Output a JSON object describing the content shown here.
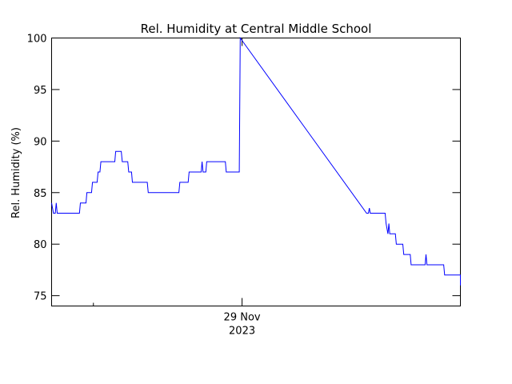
{
  "chart_data": {
    "type": "line",
    "title": "Rel. Humidity at Central Middle School",
    "ylabel": "Rel. Humidity (%)",
    "xlabel": "",
    "x_tick_labels": [
      {
        "x": 20.5,
        "line1": "29 Nov",
        "line2": "2023"
      }
    ],
    "x_minor_ticks": [
      4.5
    ],
    "xlim": [
      0,
      44
    ],
    "ylim": [
      74,
      100
    ],
    "y_ticks": [
      75,
      80,
      85,
      90,
      95,
      100
    ],
    "grid": false,
    "series": [
      {
        "color": "#0000ff",
        "points": [
          [
            0.0,
            84
          ],
          [
            0.2,
            83
          ],
          [
            0.4,
            83
          ],
          [
            0.5,
            84
          ],
          [
            0.6,
            83
          ],
          [
            3.0,
            83
          ],
          [
            3.1,
            84
          ],
          [
            3.7,
            84
          ],
          [
            3.8,
            85
          ],
          [
            4.3,
            85
          ],
          [
            4.4,
            86
          ],
          [
            4.9,
            86
          ],
          [
            5.0,
            87
          ],
          [
            5.2,
            87
          ],
          [
            5.3,
            88
          ],
          [
            6.8,
            88
          ],
          [
            6.9,
            89
          ],
          [
            7.5,
            89
          ],
          [
            7.6,
            88
          ],
          [
            8.2,
            88
          ],
          [
            8.3,
            87
          ],
          [
            8.6,
            87
          ],
          [
            8.7,
            86
          ],
          [
            10.3,
            86
          ],
          [
            10.4,
            85
          ],
          [
            13.7,
            85
          ],
          [
            13.8,
            86
          ],
          [
            14.7,
            86
          ],
          [
            14.8,
            87
          ],
          [
            16.1,
            87
          ],
          [
            16.2,
            88
          ],
          [
            16.3,
            87
          ],
          [
            16.6,
            87
          ],
          [
            16.7,
            88
          ],
          [
            18.7,
            88
          ],
          [
            18.8,
            87
          ],
          [
            20.2,
            87
          ],
          [
            20.3,
            100
          ],
          [
            33.9,
            83
          ],
          [
            34.1,
            83
          ],
          [
            34.2,
            83.5
          ],
          [
            34.3,
            83
          ],
          [
            35.9,
            83
          ],
          [
            36.0,
            82
          ],
          [
            36.2,
            81
          ],
          [
            36.3,
            82
          ],
          [
            36.4,
            81
          ],
          [
            37.0,
            81
          ],
          [
            37.1,
            80
          ],
          [
            37.8,
            80
          ],
          [
            37.9,
            79
          ],
          [
            38.6,
            79
          ],
          [
            38.7,
            78
          ],
          [
            40.2,
            78
          ],
          [
            40.3,
            79
          ],
          [
            40.4,
            78
          ],
          [
            42.2,
            78
          ],
          [
            42.3,
            77
          ],
          [
            44.0,
            77
          ],
          [
            44.0,
            76
          ]
        ]
      }
    ]
  }
}
